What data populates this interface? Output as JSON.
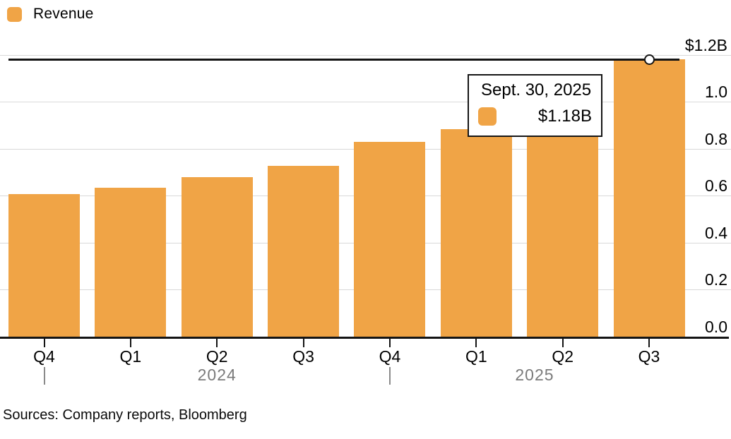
{
  "legend": {
    "label": "Revenue"
  },
  "colors": {
    "bar": "#F0A446",
    "gridline": "#D9D9D9",
    "axis": "#141414",
    "year_text": "#7B7B7B"
  },
  "chart_data": {
    "type": "bar",
    "title": "",
    "series": [
      {
        "name": "Revenue",
        "values": [
          0.608,
          0.634,
          0.678,
          0.726,
          0.828,
          0.884,
          1.004,
          1.181
        ]
      }
    ],
    "categories": [
      "Q4",
      "Q1",
      "Q2",
      "Q3",
      "Q4",
      "Q1",
      "Q2",
      "Q3"
    ],
    "year_labels": [
      "2024",
      "2025"
    ],
    "year_divider_indices": [
      0,
      4
    ],
    "unit": "USD billions",
    "ylabel": "",
    "xlabel": "",
    "ylim": [
      0,
      1.2
    ],
    "y_ticks": [
      {
        "label": "$1.2B",
        "value": 1.2
      },
      {
        "label": "1.0",
        "value": 1.0
      },
      {
        "label": "0.8",
        "value": 0.8
      },
      {
        "label": "0.6",
        "value": 0.6
      },
      {
        "label": "0.4",
        "value": 0.4
      },
      {
        "label": "0.2",
        "value": 0.2
      },
      {
        "label": "0.0",
        "value": 0.0
      }
    ],
    "grid": true,
    "legend_position": "top-left",
    "y_axis_side": "right",
    "highlight": {
      "index": 7,
      "value_line": 1.181,
      "marker": "circle"
    }
  },
  "tooltip": {
    "date": "Sept. 30, 2025",
    "value_label": "$1.18B"
  },
  "footer": {
    "sources": "Sources: Company reports, Bloomberg"
  }
}
